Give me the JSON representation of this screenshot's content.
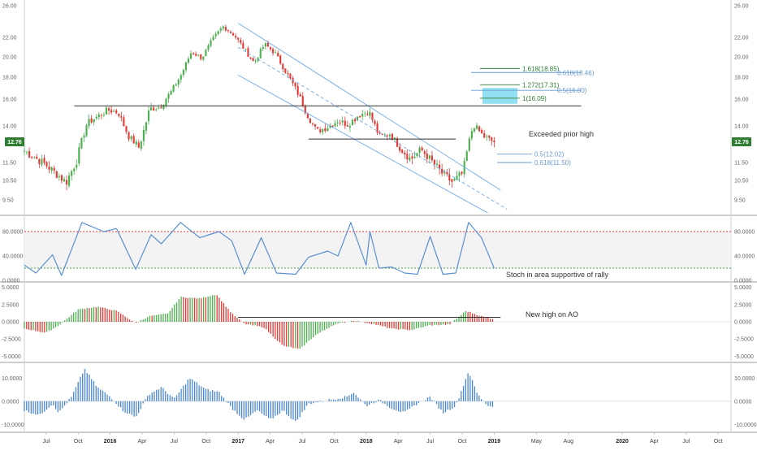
{
  "colors": {
    "up": "#4caf50",
    "down": "#e53935",
    "channel": "#6fa8e8",
    "stoch_line": "#5b8fd0",
    "stoch_overbought": "#e53935",
    "stoch_oversold": "#43a047",
    "fib_green": "#2e7d32",
    "fib_blue": "#6b9bd2",
    "fib_zone": "#7fdbf0",
    "price_badge": "#2e7d32",
    "macd_bar": "#4a86d6"
  },
  "chart_data": [
    {
      "type": "candlestick",
      "name": "price",
      "price_label": "12.76",
      "ylim": [
        8.8,
        26.4
      ],
      "yticks": [
        "26.00",
        "22.00",
        "20.00",
        "18.00",
        "16.00",
        "14.00",
        "11.50",
        "10.50",
        "9.50"
      ],
      "ytick_values": [
        26,
        22,
        20,
        18,
        16,
        14,
        11.5,
        10.5,
        9.5
      ],
      "x_months_index": [
        0,
        4,
        5,
        41,
        42
      ],
      "path_keypoints": [
        [
          0,
          12.2
        ],
        [
          2,
          11.4
        ],
        [
          4,
          10.4
        ],
        [
          5,
          11.6
        ],
        [
          6,
          14.2
        ],
        [
          8,
          15.2
        ],
        [
          9,
          15.0
        ],
        [
          10,
          13.2
        ],
        [
          11,
          12.4
        ],
        [
          12,
          15.3
        ],
        [
          13,
          15.4
        ],
        [
          14,
          16.6
        ],
        [
          15,
          18.2
        ],
        [
          16,
          20.5
        ],
        [
          17,
          19.9
        ],
        [
          18,
          21.7
        ],
        [
          19,
          23.4
        ],
        [
          20,
          22.4
        ],
        [
          21,
          20.9
        ],
        [
          22,
          19.4
        ],
        [
          23,
          21.3
        ],
        [
          24,
          20.4
        ],
        [
          25,
          18.6
        ],
        [
          26,
          16.9
        ],
        [
          27,
          15.0
        ],
        [
          28,
          13.6
        ],
        [
          29,
          13.9
        ],
        [
          30,
          14.4
        ],
        [
          31,
          14.1
        ],
        [
          32,
          14.8
        ],
        [
          33,
          15.1
        ],
        [
          34,
          13.2
        ],
        [
          35,
          13.4
        ],
        [
          36,
          12.4
        ],
        [
          37,
          11.7
        ],
        [
          38,
          12.3
        ],
        [
          39,
          11.6
        ],
        [
          40,
          10.9
        ],
        [
          41,
          10.4
        ],
        [
          42,
          10.9
        ],
        [
          43,
          14.1
        ],
        [
          44,
          13.2
        ],
        [
          45,
          12.76
        ]
      ],
      "x_span_weeks": [
        0,
        45
      ],
      "x_axis_labels": [
        "Jul",
        "Oct",
        "2016",
        "Apr",
        "Jul",
        "Oct",
        "2017",
        "Apr",
        "Jul",
        "Oct",
        "2018",
        "Apr",
        "Jul",
        "Oct",
        "2019",
        "May",
        "Aug",
        "2020",
        "Apr",
        "Jul",
        "Oct"
      ],
      "x_axis_bold": [
        "2016",
        "2017",
        "2018",
        "2019",
        "2020"
      ],
      "horizontal_levels": [
        15.5,
        13.0
      ],
      "channel": {
        "upper": [
          [
            2017.0,
            23.8
          ],
          [
            2019.05,
            10.0
          ]
        ],
        "lower": [
          [
            2017.0,
            18.2
          ],
          [
            2018.95,
            8.8
          ]
        ],
        "mid_dashed": [
          [
            2017.0,
            21.0
          ],
          [
            2019.1,
            9.0
          ]
        ]
      },
      "fib_levels": [
        {
          "label": "1.618(18.85)",
          "value": 18.85,
          "color": "green"
        },
        {
          "label": "0.618(18.46)",
          "value": 18.46,
          "color": "blue"
        },
        {
          "label": "1.272(17.31)",
          "value": 17.31,
          "color": "green"
        },
        {
          "label": "0.5(16.80)",
          "value": 16.8,
          "color": "blue"
        },
        {
          "label": "1(16.09)",
          "value": 16.09,
          "color": "green"
        },
        {
          "label": "0.5(12.02)",
          "value": 12.02,
          "color": "blue"
        },
        {
          "label": "0.618(11.50)",
          "value": 11.5,
          "color": "blue"
        }
      ],
      "annotations": [
        "Exceeded prior high"
      ]
    },
    {
      "type": "line",
      "name": "stochastic",
      "ylim": [
        0,
        100
      ],
      "yticks": [
        "80.0000",
        "40.0000",
        "0.0000"
      ],
      "ytick_values": [
        80,
        40,
        0
      ],
      "overbought": 80,
      "oversold": 20,
      "annotations": [
        "Stoch in area supportive of rally"
      ]
    },
    {
      "type": "bar",
      "name": "awesome-oscillator",
      "ylim": [
        -5.2,
        5.2
      ],
      "yticks": [
        "5.0000",
        "2.5000",
        "0.0000",
        "-2.5000",
        "-5.0000"
      ],
      "ytick_values": [
        5,
        2.5,
        0,
        -2.5,
        -5
      ],
      "annotations": [
        "New high on AO"
      ]
    },
    {
      "type": "bar",
      "name": "histogram",
      "ylim": [
        -12,
        15
      ],
      "yticks": [
        "10.0000",
        "0.0000",
        "-10.0000"
      ],
      "ytick_values": [
        10,
        0,
        -10
      ]
    }
  ]
}
